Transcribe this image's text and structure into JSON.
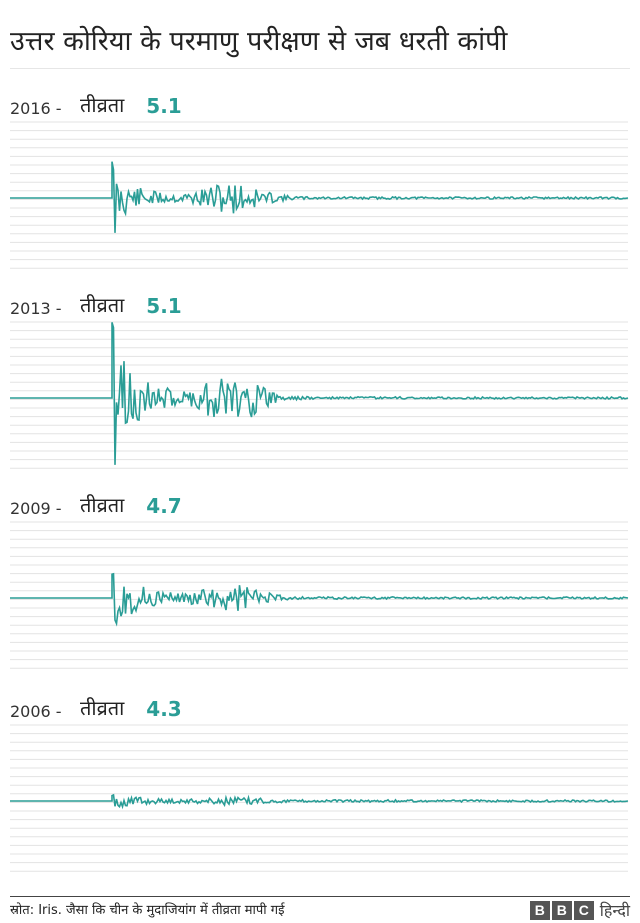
{
  "title": "उत्तर कोरिया के परमाणु परीक्षण से जब धरती कांपी",
  "magnitude_label": "तीव्रता",
  "source": "स्रोत: Iris. जैसा कि चीन के मुदाजियांग में तीव्रता मापी गई",
  "logo": {
    "letters": [
      "B",
      "B",
      "C"
    ],
    "word": "हिन्दी"
  },
  "colors": {
    "trace": "#2a9d96",
    "grid": "#e3e3e3",
    "text": "#222222"
  },
  "chart_data": [
    {
      "type": "line",
      "year": "2016 -",
      "magnitude": "5.1"
    },
    {
      "type": "line",
      "year": "2013 -",
      "magnitude": "5.1"
    },
    {
      "type": "line",
      "year": "2009 -",
      "magnitude": "4.7"
    },
    {
      "type": "line",
      "year": "2006 -",
      "magnitude": "4.3"
    }
  ]
}
